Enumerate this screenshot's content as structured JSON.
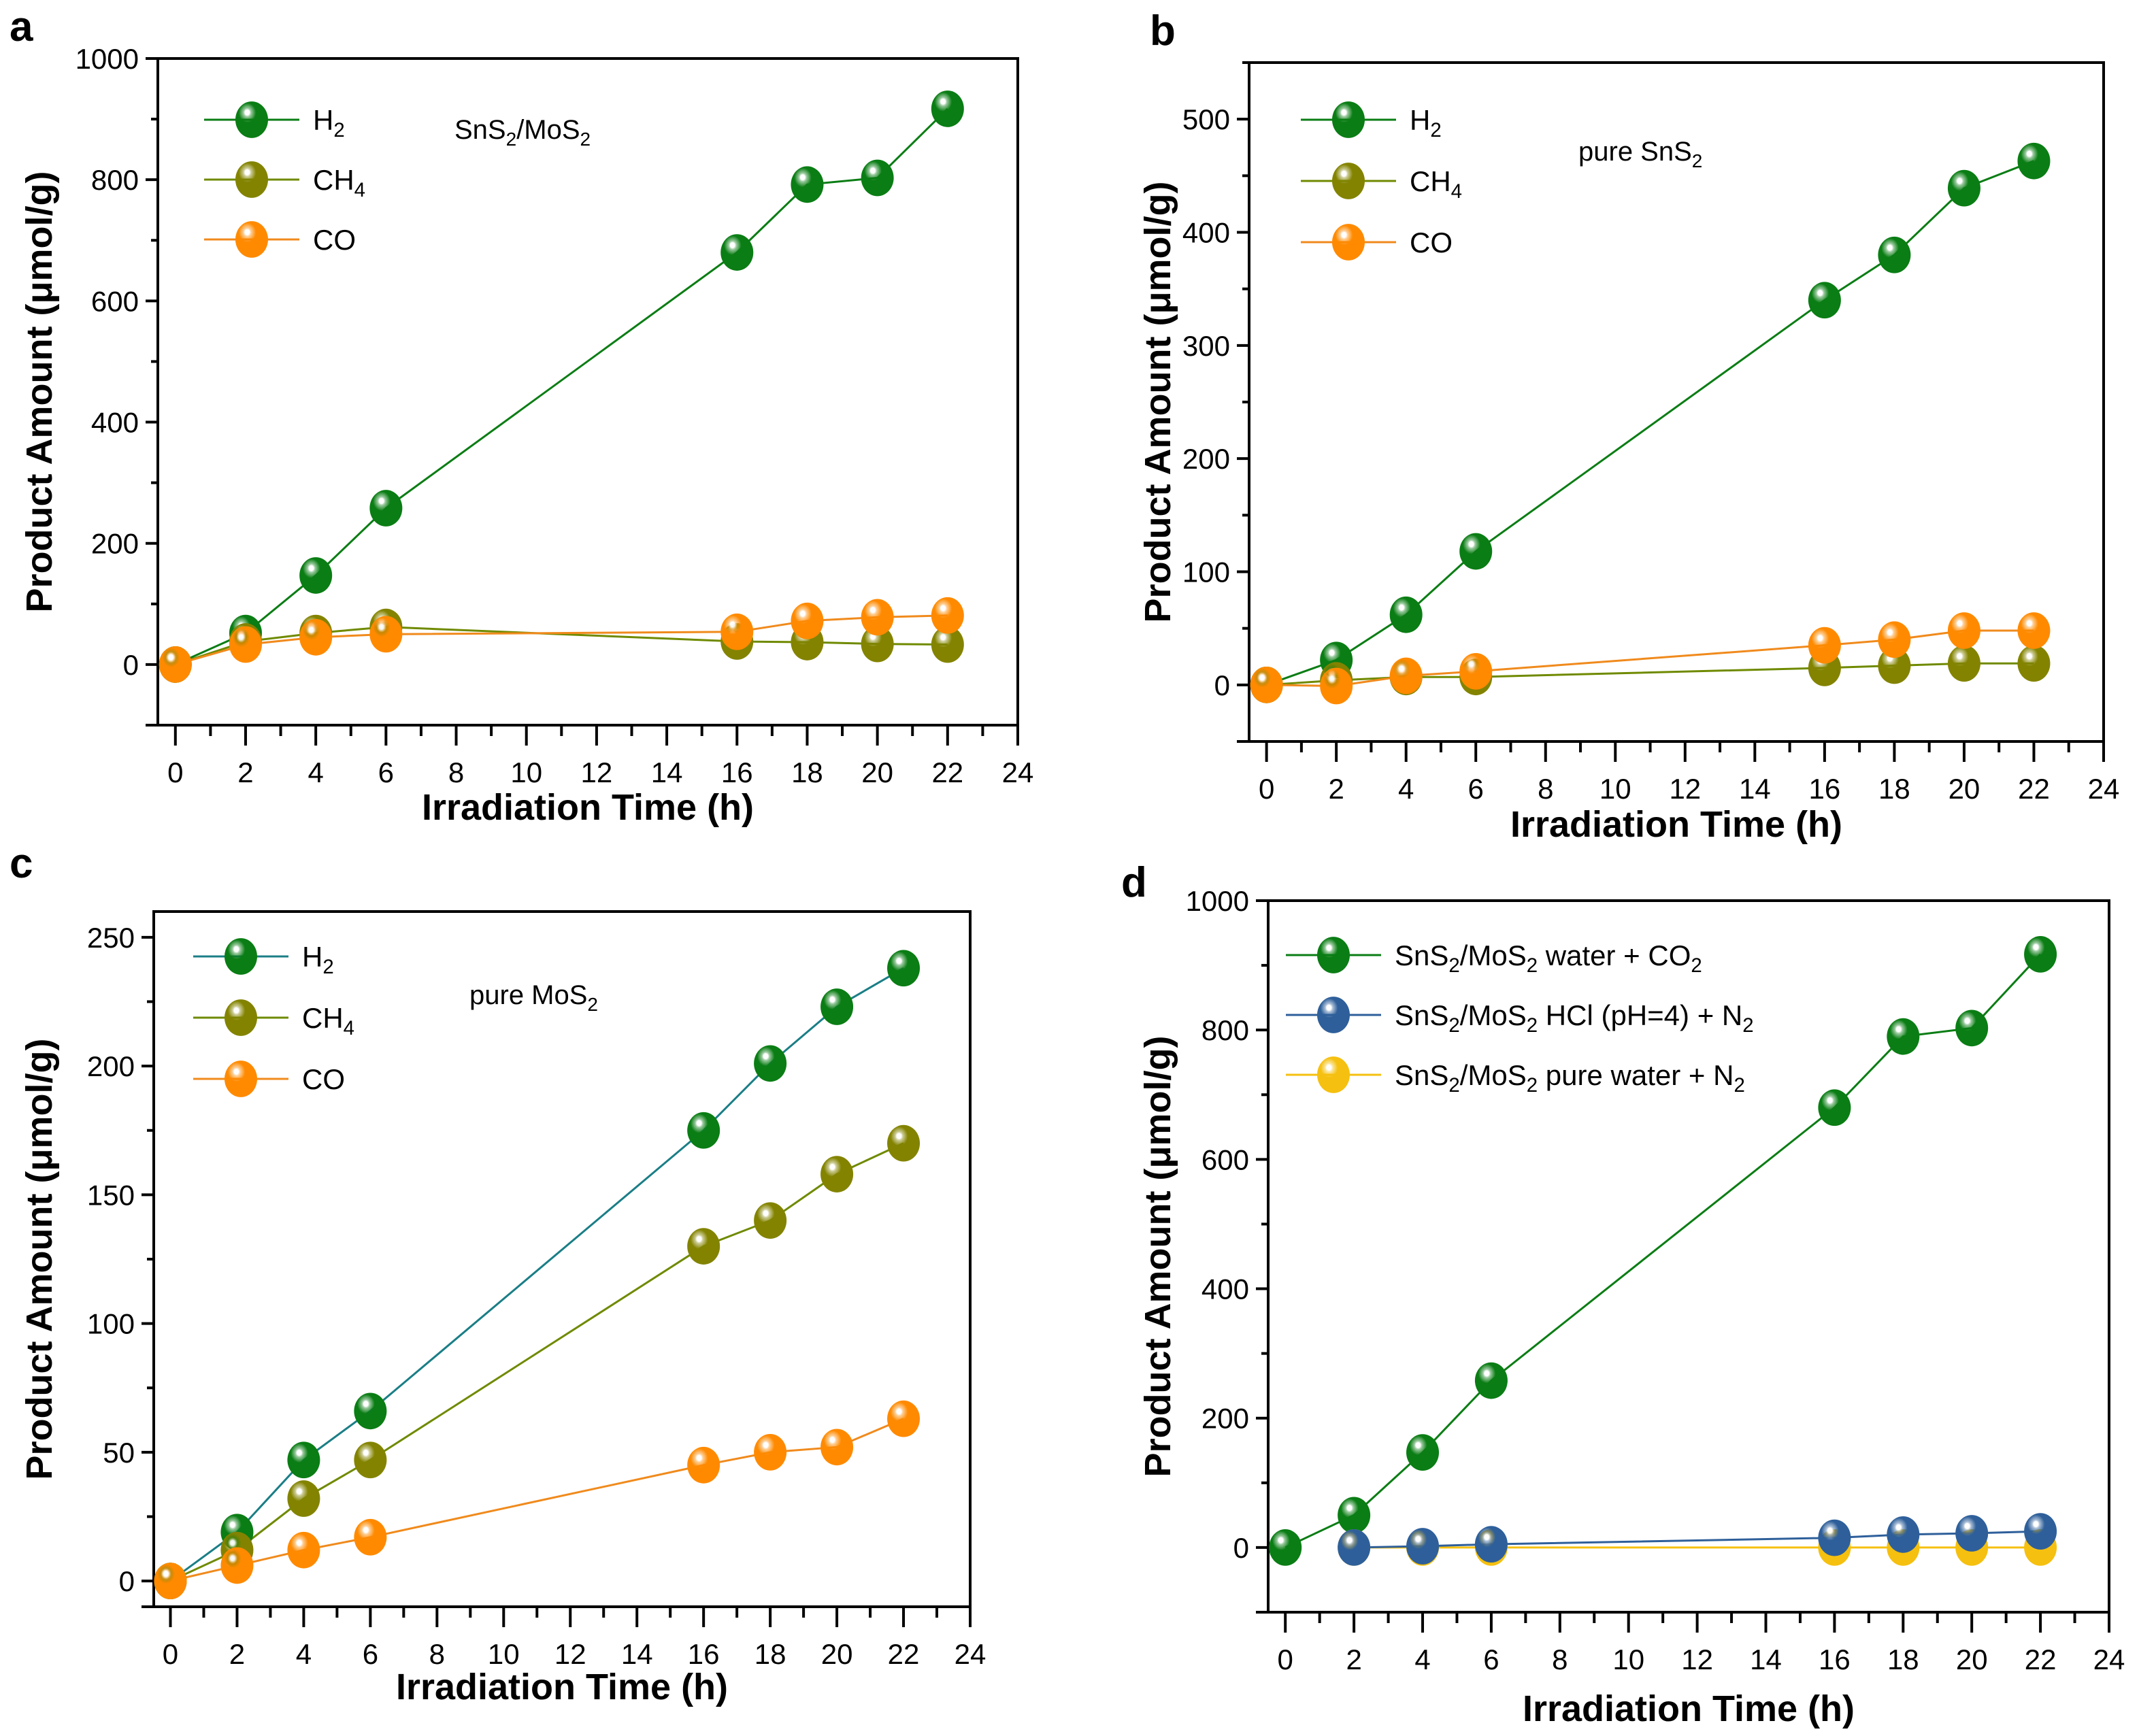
{
  "chart_data": [
    {
      "panel": "a",
      "type": "line",
      "annotation": {
        "parts": [
          [
            "SnS",
            ""
          ],
          [
            "2",
            "sub"
          ],
          [
            "/MoS",
            ""
          ],
          [
            "2",
            "sub"
          ]
        ]
      },
      "xlabel": "Irradiation Time (h)",
      "ylabel": "Product Amount (μmol/g)",
      "xlim": [
        -0.5,
        24
      ],
      "ylim": [
        -100,
        1000
      ],
      "xticks": [
        0,
        2,
        4,
        6,
        8,
        10,
        12,
        14,
        16,
        18,
        20,
        22,
        24
      ],
      "yticks": [
        0,
        200,
        400,
        600,
        800,
        1000
      ],
      "yminor": 100,
      "legend_position": "top-left",
      "x": [
        0,
        2,
        4,
        6,
        16,
        18,
        20,
        22
      ],
      "series": [
        {
          "name": "H2",
          "label_parts": [
            [
              "H",
              ""
            ],
            [
              "2",
              "sub"
            ]
          ],
          "color": "#0a7d14",
          "line_color": "#0a7d14",
          "values": [
            0,
            52,
            147,
            258,
            680,
            792,
            803,
            917
          ]
        },
        {
          "name": "CH4",
          "label_parts": [
            [
              "CH",
              ""
            ],
            [
              "4",
              "sub"
            ]
          ],
          "color": "#838300",
          "line_color": "#6f8a00",
          "values": [
            0,
            38,
            52,
            62,
            38,
            37,
            34,
            33
          ]
        },
        {
          "name": "CO",
          "label_parts": [
            [
              "CO",
              ""
            ]
          ],
          "color": "#ff8a00",
          "line_color": "#f08a1c",
          "values": [
            0,
            33,
            45,
            50,
            54,
            72,
            78,
            81
          ]
        }
      ]
    },
    {
      "panel": "b",
      "type": "line",
      "annotation": {
        "parts": [
          [
            "pure SnS",
            ""
          ],
          [
            "2",
            "sub"
          ]
        ]
      },
      "xlabel": "Irradiation Time (h)",
      "ylabel": "Product Amount (μmol/g)",
      "xlim": [
        -0.5,
        24
      ],
      "ylim": [
        -50,
        550
      ],
      "xticks": [
        0,
        2,
        4,
        6,
        8,
        10,
        12,
        14,
        16,
        18,
        20,
        22,
        24
      ],
      "yticks": [
        0,
        100,
        200,
        300,
        400,
        500
      ],
      "yminor": 50,
      "legend_position": "top-left",
      "x": [
        0,
        2,
        4,
        6,
        16,
        18,
        20,
        22
      ],
      "series": [
        {
          "name": "H2",
          "label_parts": [
            [
              "H",
              ""
            ],
            [
              "2",
              "sub"
            ]
          ],
          "color": "#0a7d14",
          "line_color": "#0a7d14",
          "values": [
            0,
            22,
            62,
            118,
            340,
            380,
            439,
            463
          ]
        },
        {
          "name": "CH4",
          "label_parts": [
            [
              "CH",
              ""
            ],
            [
              "4",
              "sub"
            ]
          ],
          "color": "#838300",
          "line_color": "#6f8a00",
          "values": [
            0,
            4,
            7,
            7,
            15,
            17,
            19,
            19
          ]
        },
        {
          "name": "CO",
          "label_parts": [
            [
              "CO",
              ""
            ]
          ],
          "color": "#ff8a00",
          "line_color": "#f08a1c",
          "values": [
            0,
            -1,
            8,
            12,
            35,
            40,
            48,
            48
          ]
        }
      ]
    },
    {
      "panel": "c",
      "type": "line",
      "annotation": {
        "parts": [
          [
            "pure MoS",
            ""
          ],
          [
            "2",
            "sub"
          ]
        ]
      },
      "xlabel": "Irradiation Time (h)",
      "ylabel": "Product Amount (μmol/g)",
      "xlim": [
        -0.5,
        24
      ],
      "ylim": [
        -10,
        260
      ],
      "xticks": [
        0,
        2,
        4,
        6,
        8,
        10,
        12,
        14,
        16,
        18,
        20,
        22,
        24
      ],
      "yticks": [
        0,
        50,
        100,
        150,
        200,
        250
      ],
      "yminor": 25,
      "legend_position": "top-left",
      "x": [
        0,
        2,
        4,
        6,
        16,
        18,
        20,
        22
      ],
      "series": [
        {
          "name": "H2",
          "label_parts": [
            [
              "H",
              ""
            ],
            [
              "2",
              "sub"
            ]
          ],
          "color": "#0a7d14",
          "line_color": "#1a7e86",
          "values": [
            0,
            19,
            47,
            66,
            175,
            201,
            223,
            238
          ]
        },
        {
          "name": "CH4",
          "label_parts": [
            [
              "CH",
              ""
            ],
            [
              "4",
              "sub"
            ]
          ],
          "color": "#838300",
          "line_color": "#6f8a00",
          "values": [
            0,
            12,
            32,
            47,
            130,
            140,
            158,
            170
          ]
        },
        {
          "name": "CO",
          "label_parts": [
            [
              "CO",
              ""
            ]
          ],
          "color": "#ff8a00",
          "line_color": "#f08a1c",
          "values": [
            0,
            6,
            12,
            17,
            45,
            50,
            52,
            63
          ]
        }
      ]
    },
    {
      "panel": "d",
      "type": "line",
      "annotation": null,
      "xlabel": "Irradiation Time (h)",
      "ylabel": "Product Amount (μmol/g)",
      "xlim": [
        -0.5,
        24
      ],
      "ylim": [
        -100,
        1000
      ],
      "xticks": [
        0,
        2,
        4,
        6,
        8,
        10,
        12,
        14,
        16,
        18,
        20,
        22,
        24
      ],
      "yticks": [
        0,
        200,
        400,
        600,
        800,
        1000
      ],
      "yminor": 100,
      "legend_position": "top-left",
      "x": [
        0,
        2,
        4,
        6,
        16,
        18,
        20,
        22
      ],
      "series": [
        {
          "name": "SnS2/MoS2 water + CO2",
          "label_parts": [
            [
              "SnS",
              ""
            ],
            [
              "2",
              "sub"
            ],
            [
              "/MoS",
              ""
            ],
            [
              "2",
              "sub"
            ],
            [
              " water + CO",
              ""
            ],
            [
              "2",
              "sub"
            ]
          ],
          "color": "#0a7d14",
          "line_color": "#0a7d14",
          "values": [
            0,
            50,
            147,
            258,
            680,
            790,
            803,
            917
          ]
        },
        {
          "name": "SnS2/MoS2 pure water + N2",
          "label_parts": [
            [
              "SnS",
              ""
            ],
            [
              "2",
              "sub"
            ],
            [
              "/MoS",
              ""
            ],
            [
              "2",
              "sub"
            ],
            [
              "  pure water + N",
              ""
            ],
            [
              "2",
              "sub"
            ]
          ],
          "color": "#f5c00f",
          "line_color": "#f5c00f",
          "values": [
            null,
            0,
            0,
            0,
            0,
            0,
            0,
            0
          ],
          "legend_order": 2
        },
        {
          "name": "SnS2/MoS2 HCl (pH=4) + N2",
          "label_parts": [
            [
              "SnS",
              ""
            ],
            [
              "2",
              "sub"
            ],
            [
              "/MoS",
              ""
            ],
            [
              "2",
              "sub"
            ],
            [
              "  HCl (pH=4) + N",
              ""
            ],
            [
              "2",
              "sub"
            ]
          ],
          "color": "#2e5f9a",
          "line_color": "#2e5f9a",
          "values": [
            null,
            0,
            2,
            5,
            15,
            20,
            22,
            25
          ],
          "legend_order": 1
        }
      ]
    }
  ]
}
